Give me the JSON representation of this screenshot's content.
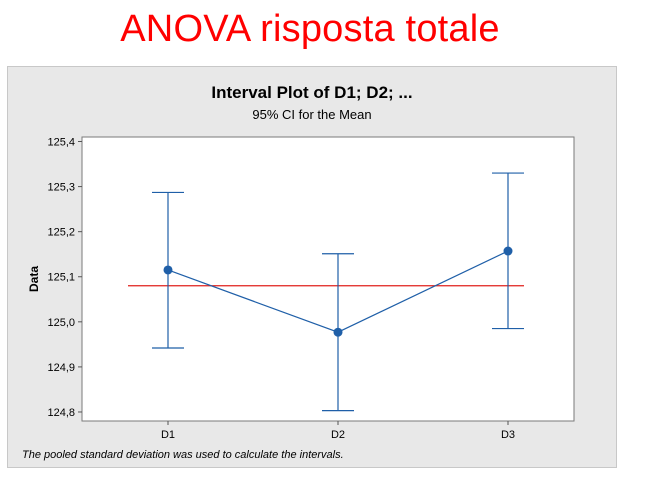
{
  "slide": {
    "title": "ANOVA risposta totale"
  },
  "chart_data": {
    "type": "interval",
    "title": "Interval Plot of D1; D2; ...",
    "subtitle": "95% CI for the Mean",
    "ylabel": "Data",
    "xlabel": "",
    "categories": [
      "D1",
      "D2",
      "D3"
    ],
    "means": [
      125.115,
      124.977,
      125.157
    ],
    "lower": [
      124.942,
      124.803,
      124.985
    ],
    "upper": [
      125.287,
      125.151,
      125.33
    ],
    "reference_line": 125.08,
    "ylim": [
      124.78,
      125.41
    ],
    "yticks": [
      124.8,
      124.9,
      125.0,
      125.1,
      125.2,
      125.3,
      125.4
    ],
    "ytick_labels": [
      "124,8",
      "124,9",
      "125,0",
      "125,1",
      "125,2",
      "125,3",
      "125,4"
    ],
    "footnote": "The pooled standard deviation was used to calculate the intervals.",
    "colors": {
      "series": "#1f5fa8",
      "reference": "#e0201c",
      "frame": "#e8e8e8",
      "plot": "#ffffff"
    },
    "grid": false
  }
}
